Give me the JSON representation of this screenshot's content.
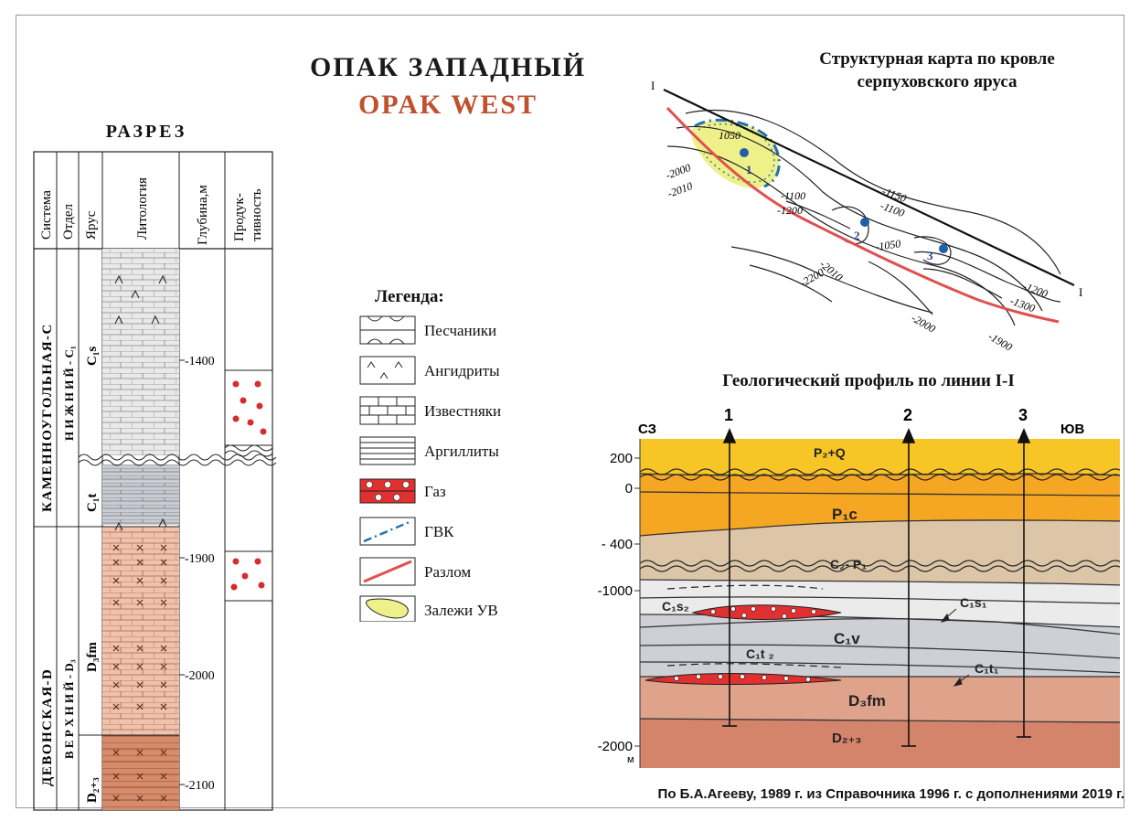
{
  "title": {
    "ru": "ОПАК ЗАПАДНЫЙ",
    "en": "OPAK WEST"
  },
  "section": {
    "heading": "РАЗРЕЗ",
    "columns": [
      "Система",
      "Отдел",
      "Ярус",
      "Литология",
      "Глубина,м",
      "Продук-тивность"
    ],
    "systems": [
      "КАМЕННОУГОЛЬНАЯ-С",
      "ДЕВОНСКАЯ-D"
    ],
    "series": [
      "Н И Ж Н И Й - С₁",
      "В Е Р Х Н И Й - D₃"
    ],
    "stages": [
      "C₁s",
      "C₁t",
      "D₃fm",
      "D₂₊₃"
    ],
    "depth_ticks": [
      "-1400",
      "-1900",
      "-2000",
      "-2100"
    ]
  },
  "legend": {
    "title": "Легенда:",
    "items": [
      "Песчаники",
      "Ангидриты",
      "Известняки",
      "Аргиллиты",
      "Газ",
      "ГВК",
      "Разлом",
      "Залежи УВ"
    ]
  },
  "map": {
    "title_line1": "Структурная карта по кровле",
    "title_line2": "серпуховского яруса",
    "contours": [
      "1050",
      "-1100",
      "-1200",
      "-1150",
      "-1100",
      "-1050",
      "-1200",
      "-1300",
      "-1900",
      "-2000",
      "-2010",
      "-2010",
      "-2200",
      "-2000"
    ],
    "wells": [
      "1",
      "2",
      "3"
    ],
    "line_ends": [
      "I",
      "I"
    ]
  },
  "profile": {
    "title": "Геологический профиль по линии I-I",
    "left_label": "СЗ",
    "right_label": "ЮВ",
    "wells": [
      "1",
      "2",
      "3"
    ],
    "depth_ticks": [
      "200",
      "0",
      "- 400",
      "-1000",
      "-2000"
    ],
    "unit": "м",
    "layers": [
      "P₂+Q",
      "P₁c",
      "C₂- P₁",
      "C₁s₂",
      "C₁s₁",
      "C₁v",
      "C₁t ₂",
      "C₁t₁",
      "D₃fm",
      "D₂₊₃"
    ]
  },
  "footer": "По Б.А.Агееву, 1989 г. из Справочника 1996 г. с дополнениями 2019 г.",
  "colors": {
    "accent": "#c0502e",
    "gas": "#e03030",
    "fault": "#e05050",
    "gvk": "#1e6fb5",
    "deposit": "#eef08a"
  }
}
